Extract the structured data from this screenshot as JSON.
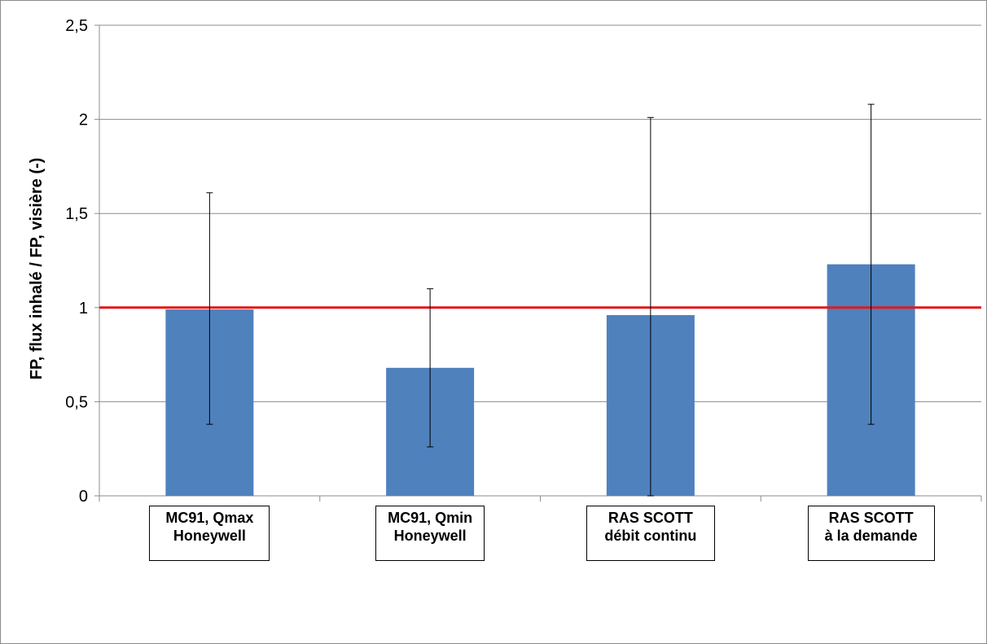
{
  "chart_data": {
    "type": "bar",
    "categories": [
      [
        "MC91, Qmax",
        "Honeywell"
      ],
      [
        "MC91, Qmin",
        "Honeywell"
      ],
      [
        "RAS SCOTT",
        "débit continu"
      ],
      [
        "RAS SCOTT",
        "à la demande"
      ]
    ],
    "values": [
      0.99,
      0.68,
      0.96,
      1.23
    ],
    "error_low": [
      0.38,
      0.26,
      0.0,
      0.38
    ],
    "error_high": [
      1.61,
      1.1,
      2.01,
      2.08
    ],
    "ylabel": "FP, flux inhalé / FP, visière (-)",
    "ylim": [
      0,
      2.5
    ],
    "yticks": [
      "0",
      "0,5",
      "1",
      "1,5",
      "2",
      "2,5"
    ],
    "reference_line": 1.0,
    "grid": true,
    "colors": {
      "bar": "#4f81bd",
      "reference_line": "#e3191c",
      "grid": "#8c8c8c"
    }
  }
}
